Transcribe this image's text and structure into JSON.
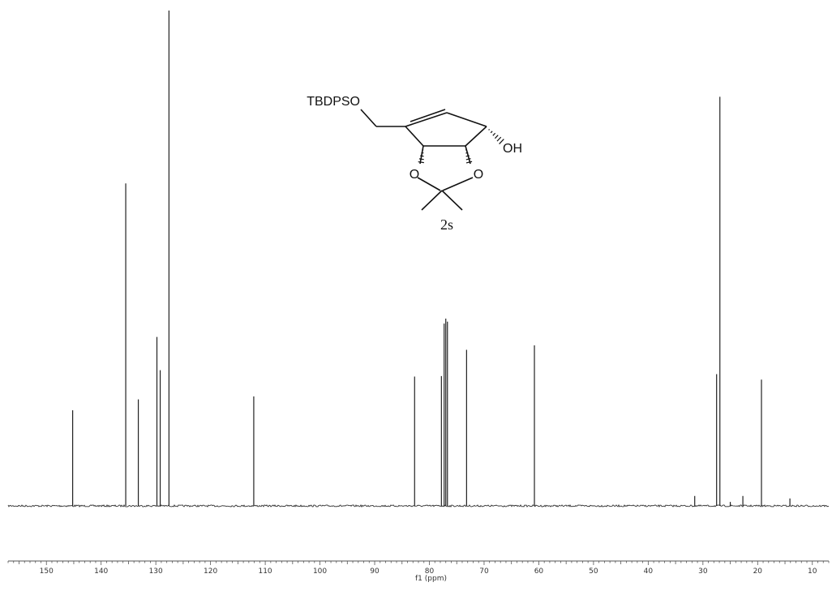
{
  "chart_data": {
    "type": "line",
    "subtype": "nmr-spectrum",
    "xlabel": "f1 (ppm)",
    "ylabel": "",
    "x_reversed": true,
    "xlim": [
      157,
      7
    ],
    "ylim": [
      0,
      1.0
    ],
    "x_ticks": [
      150,
      140,
      130,
      120,
      110,
      100,
      90,
      80,
      70,
      60,
      50,
      40,
      30,
      20,
      10
    ],
    "grid": false,
    "baseline": "noise",
    "peaks": [
      {
        "ppm": 145.2,
        "height": 0.193
      },
      {
        "ppm": 135.5,
        "height": 0.651
      },
      {
        "ppm": 133.2,
        "height": 0.215
      },
      {
        "ppm": 129.8,
        "height": 0.341
      },
      {
        "ppm": 129.2,
        "height": 0.274
      },
      {
        "ppm": 127.6,
        "height": 1.0
      },
      {
        "ppm": 112.1,
        "height": 0.221
      },
      {
        "ppm": 82.7,
        "height": 0.261
      },
      {
        "ppm": 77.8,
        "height": 0.262
      },
      {
        "ppm": 77.3,
        "height": 0.368
      },
      {
        "ppm": 77.0,
        "height": 0.378
      },
      {
        "ppm": 76.7,
        "height": 0.372
      },
      {
        "ppm": 73.2,
        "height": 0.315
      },
      {
        "ppm": 60.8,
        "height": 0.324
      },
      {
        "ppm": 31.5,
        "height": 0.02
      },
      {
        "ppm": 27.5,
        "height": 0.266
      },
      {
        "ppm": 26.9,
        "height": 0.826
      },
      {
        "ppm": 25.0,
        "height": 0.008
      },
      {
        "ppm": 22.7,
        "height": 0.02
      },
      {
        "ppm": 19.3,
        "height": 0.255
      },
      {
        "ppm": 14.1,
        "height": 0.015
      }
    ]
  },
  "structure": {
    "silyl_ether_label": "TBDPSO",
    "hydroxyl_label": "OH",
    "ring_oxygen_1": "O",
    "ring_oxygen_2": "O",
    "compound_id": "2s"
  }
}
